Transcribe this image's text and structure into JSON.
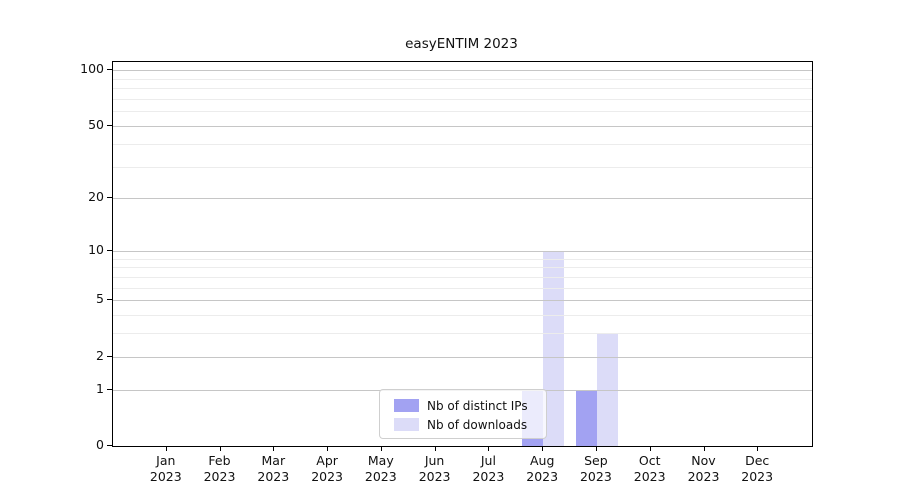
{
  "chart": {
    "title": "easyENTIM 2023"
  },
  "chart_data": {
    "type": "bar",
    "title": "easyENTIM 2023",
    "categories": [
      "Jan\n2023",
      "Feb\n2023",
      "Mar\n2023",
      "Apr\n2023",
      "May\n2023",
      "Jun\n2023",
      "Jul\n2023",
      "Aug\n2023",
      "Sep\n2023",
      "Oct\n2023",
      "Nov\n2023",
      "Dec\n2023"
    ],
    "series": [
      {
        "name": "Nb of distinct IPs",
        "color": "#a2a2f2",
        "values": [
          0,
          0,
          0,
          0,
          0,
          0,
          0,
          1,
          1,
          0,
          0,
          0
        ]
      },
      {
        "name": "Nb of downloads",
        "color": "#dcdcf8",
        "values": [
          0,
          0,
          0,
          0,
          0,
          0,
          0,
          10,
          3,
          0,
          0,
          0
        ]
      }
    ],
    "xlabel": "",
    "ylabel": "",
    "yscale": "log1p",
    "ylim": [
      0,
      111
    ],
    "yticks": [
      0,
      1,
      2,
      5,
      10,
      20,
      50,
      100
    ],
    "yticks_minor": [
      3,
      4,
      6,
      7,
      8,
      9,
      30,
      40,
      60,
      70,
      80,
      90
    ],
    "grid": true,
    "legend_position": "lower center inside plot",
    "legend_entries": [
      "Nb of distinct IPs",
      "Nb of downloads"
    ]
  },
  "colors": {
    "major_grid": "#c6c6c6",
    "minor_grid": "#ececec",
    "axis": "#000000",
    "legend_border": "#cfcfcf",
    "series_dark": "#a2a2f2",
    "series_light": "#dcdcf8"
  }
}
